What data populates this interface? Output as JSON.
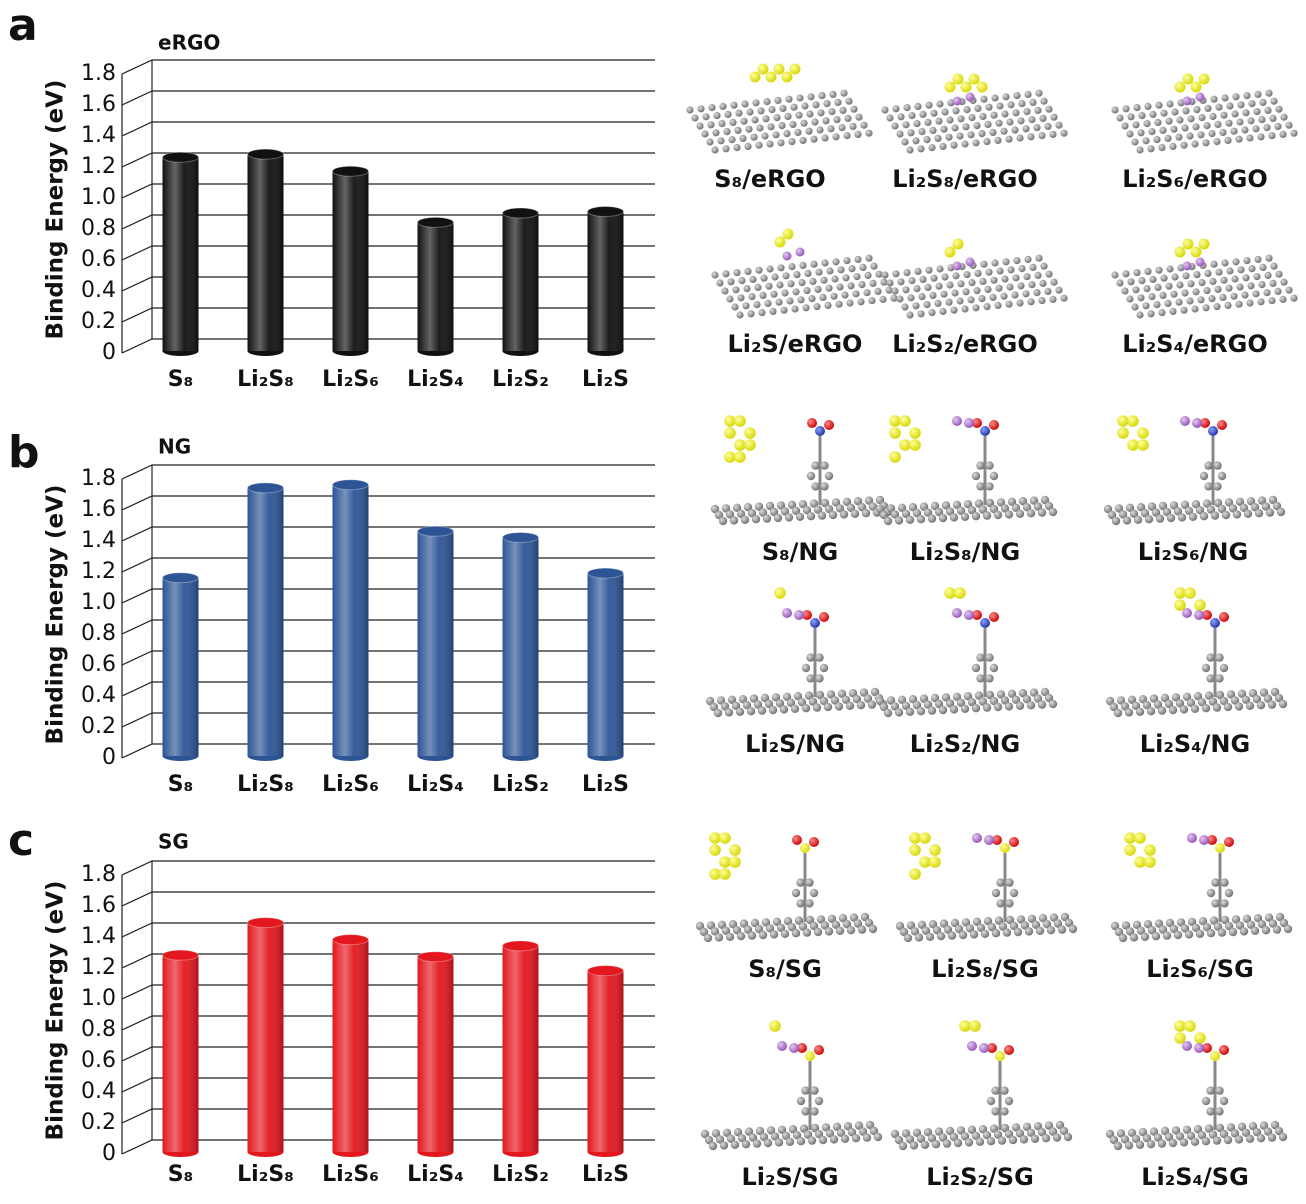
{
  "chart_data": [
    {
      "type": "bar",
      "panel_label": "a",
      "title": "eRGO",
      "y_label": "Binding Energy (eV)",
      "categories": [
        "S₈",
        "Li₂S₈",
        "Li₂S₆",
        "Li₂S₄",
        "Li₂S₂",
        "Li₂S"
      ],
      "values": [
        1.25,
        1.27,
        1.16,
        0.83,
        0.89,
        0.9
      ],
      "color": "#111111",
      "ylim": [
        0,
        1.8
      ],
      "yticks": [
        0,
        0.2,
        0.4,
        0.6,
        0.8,
        {
          "value": 1,
          "label": "1.0"
        },
        1.2,
        1.4,
        1.6,
        1.8
      ],
      "grid": true,
      "structures": [
        "S₈/eRGO",
        "Li₂S₈/eRGO",
        "Li₂S₆/eRGO",
        "Li₂S/eRGO",
        "Li₂S₂/eRGO",
        "Li₂S₄/eRGO"
      ]
    },
    {
      "type": "bar",
      "panel_label": "b",
      "title": "NG",
      "y_label": "Binding Energy (eV)",
      "categories": [
        "S₈",
        "Li₂S₈",
        "Li₂S₆",
        "Li₂S₄",
        "Li₂S₂",
        "Li₂S"
      ],
      "values": [
        1.15,
        1.73,
        1.75,
        1.45,
        1.41,
        1.18
      ],
      "color": "#2d5596",
      "ylim": [
        0,
        1.8
      ],
      "yticks": [
        0,
        0.2,
        0.4,
        0.6,
        0.8,
        {
          "value": 1,
          "label": "1.0"
        },
        1.2,
        1.4,
        1.6,
        1.8
      ],
      "grid": true,
      "structures": [
        "S₈/NG",
        "Li₂S₈/NG",
        "Li₂S₆/NG",
        "Li₂S/NG",
        "Li₂S₂/NG",
        "Li₂S₄/NG"
      ]
    },
    {
      "type": "bar",
      "panel_label": "c",
      "title": "SG",
      "y_label": "Binding Energy (eV)",
      "categories": [
        "S₈",
        "Li₂S₈",
        "Li₂S₆",
        "Li₂S₄",
        "Li₂S₂",
        "Li₂S"
      ],
      "values": [
        1.27,
        1.48,
        1.37,
        1.26,
        1.33,
        1.17
      ],
      "color": "#e3171e",
      "ylim": [
        0,
        1.8
      ],
      "yticks": [
        0,
        0.2,
        0.4,
        0.6,
        0.8,
        {
          "value": 1,
          "label": "1.0"
        },
        1.2,
        1.4,
        1.6,
        1.8
      ],
      "grid": true,
      "structures": [
        "S₈/SG",
        "Li₂S₈/SG",
        "Li₂S₆/SG",
        "Li₂S/SG",
        "Li₂S₂/SG",
        "Li₂S₄/SG"
      ]
    }
  ]
}
